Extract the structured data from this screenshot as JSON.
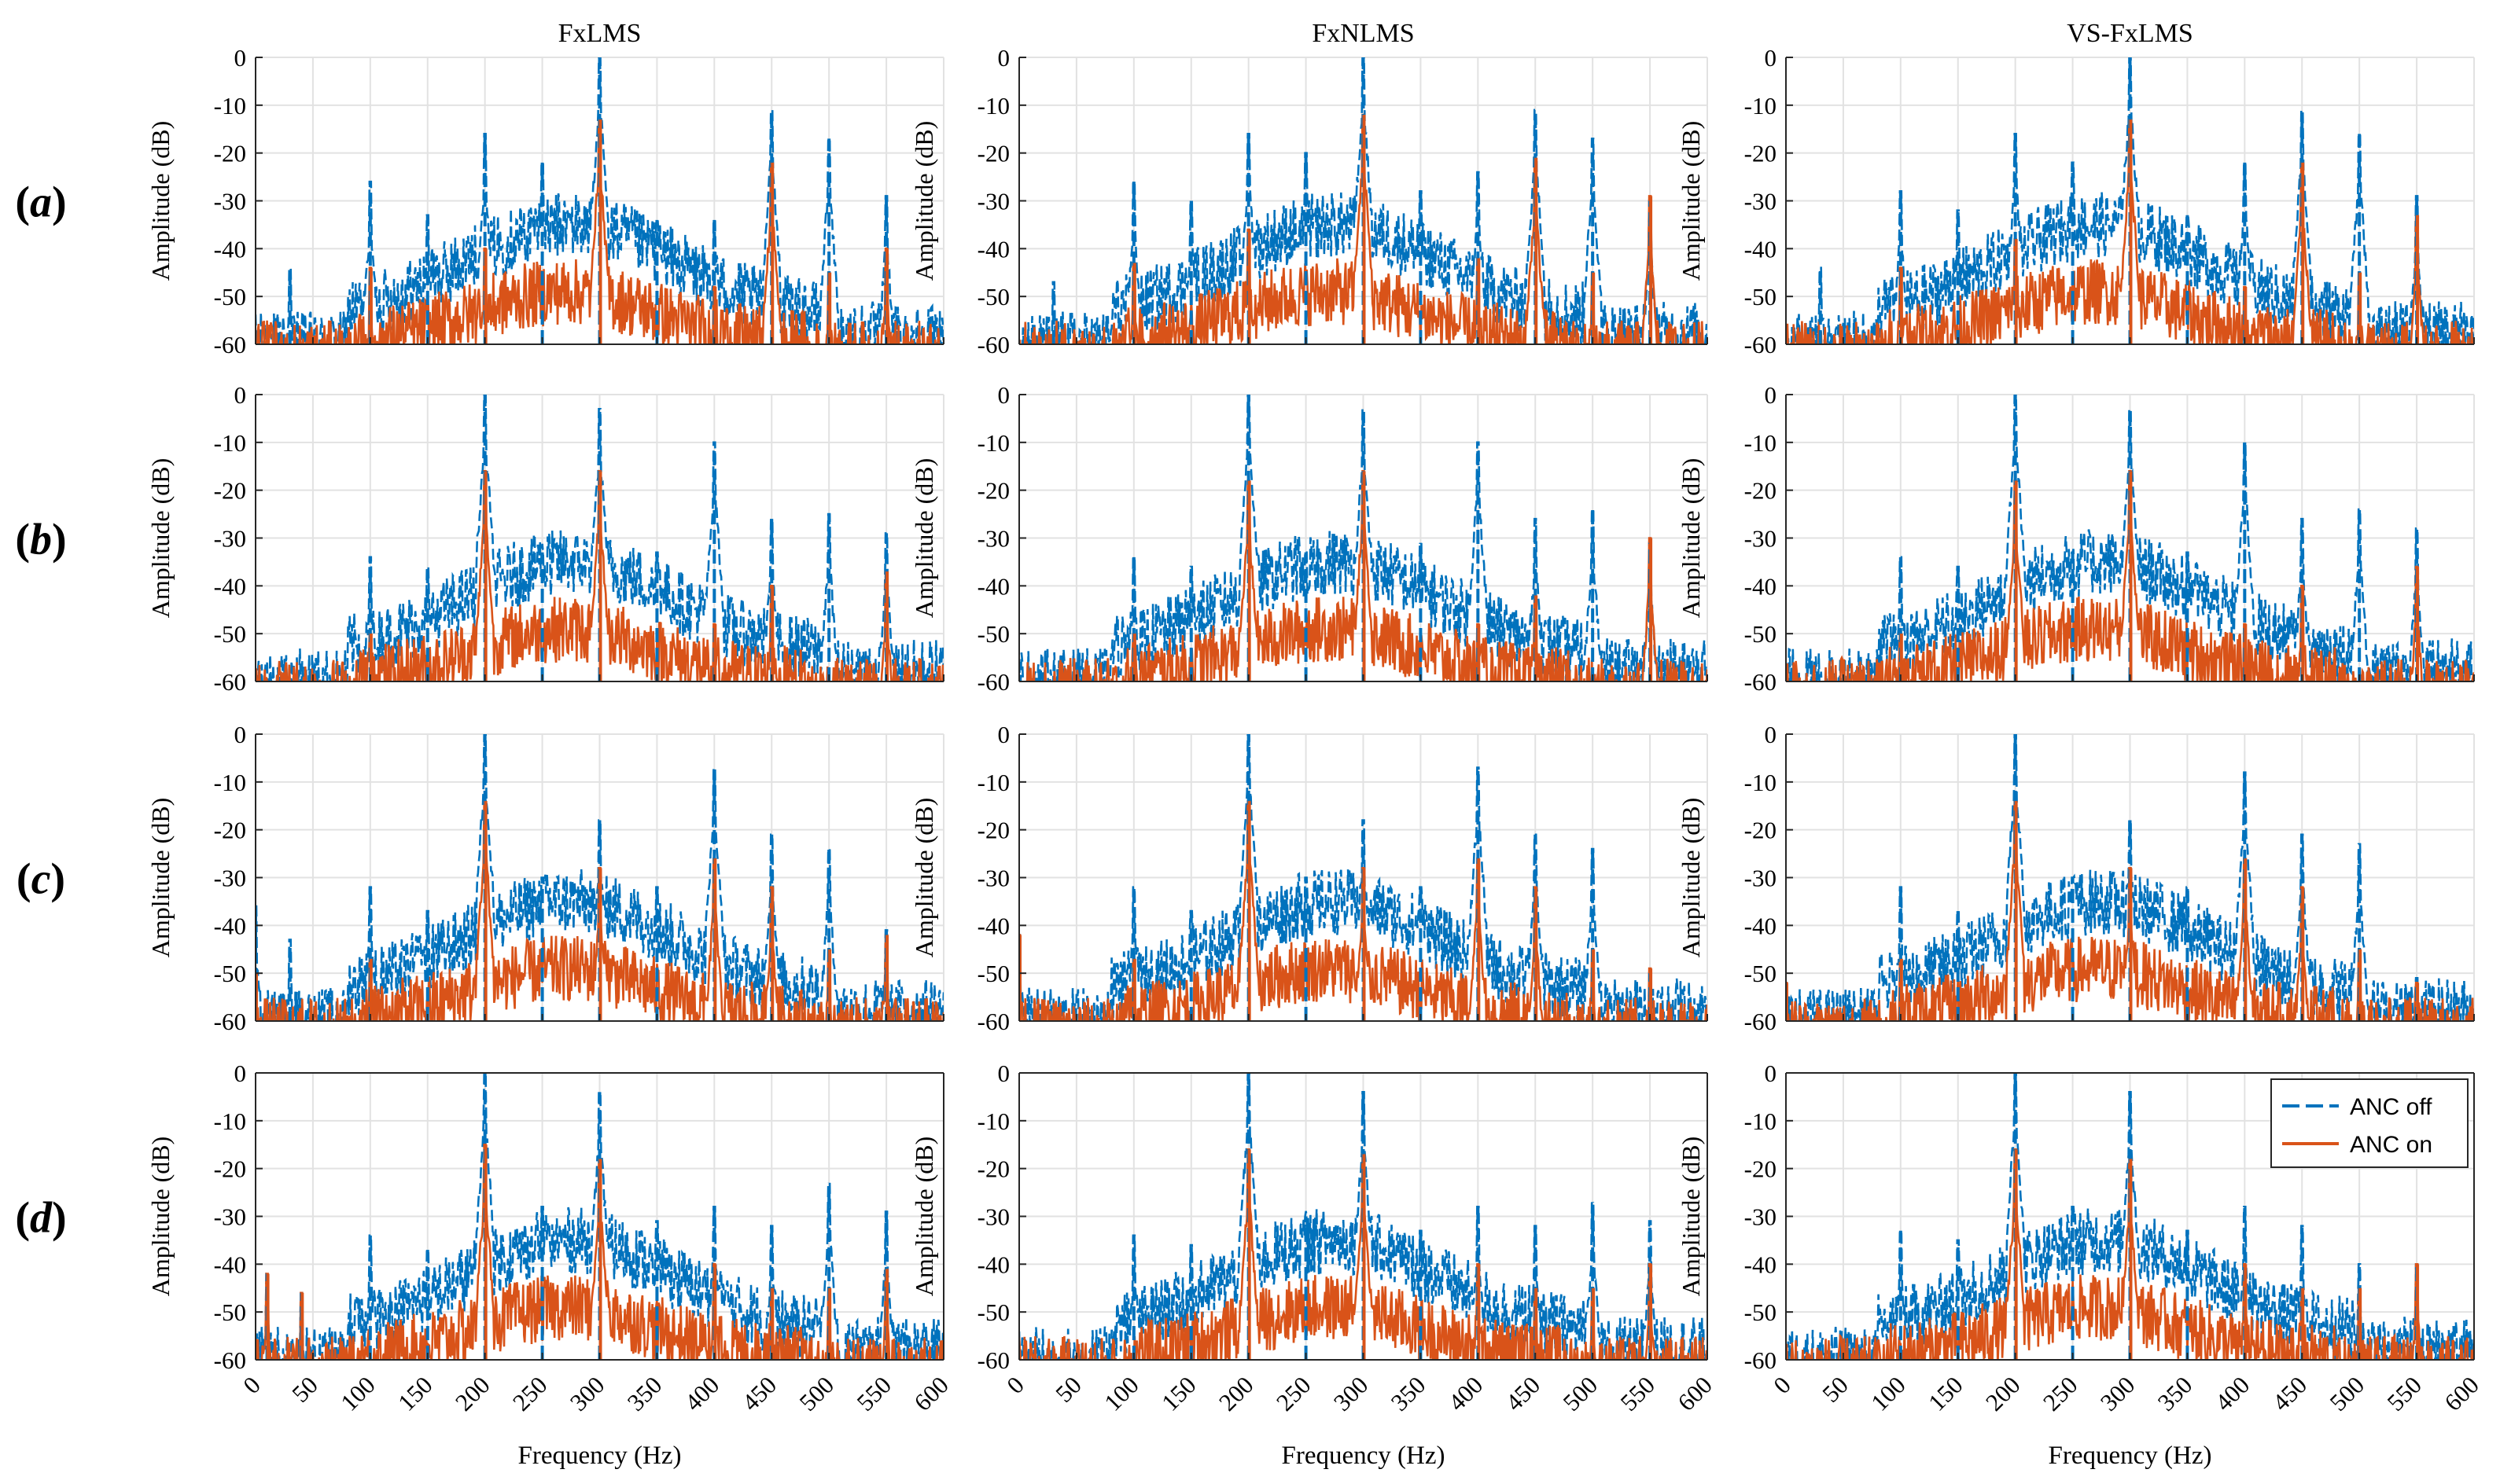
{
  "figure": {
    "columns": [
      "FxLMS",
      "FxNLMS",
      "VS-FxLMS"
    ],
    "rows": [
      "a",
      "b",
      "c",
      "d"
    ],
    "colors": {
      "anc_off": "#0072BD",
      "anc_on": "#D95319",
      "grid": "#e2e2e2",
      "axis": "#262626"
    }
  },
  "chart_data": {
    "type": "line",
    "title": "",
    "xlabel": "Frequency (Hz)",
    "ylabel": "Amplitude (dB)",
    "xlim": [
      0,
      600
    ],
    "ylim": [
      -60,
      0
    ],
    "xticks": [
      0,
      50,
      100,
      150,
      200,
      250,
      300,
      350,
      400,
      450,
      500,
      550,
      600
    ],
    "yticks": [
      0,
      -10,
      -20,
      -30,
      -40,
      -50,
      -60
    ],
    "grid": true,
    "legend": {
      "location": "top-right",
      "entries": [
        "ANC off",
        "ANC on"
      ]
    },
    "series": [
      {
        "name": "ANC off",
        "style": "dashed",
        "description": "broadband noise floor approx. -60 to -30 dB with tonal peaks"
      },
      {
        "name": "ANC on",
        "style": "solid",
        "description": "reduced broadband level approx. -60 to -45 dB with residual tonal peaks"
      }
    ],
    "panels": [
      {
        "row": "a",
        "column": "FxLMS",
        "off_peaks": [
          [
            30,
            -44
          ],
          [
            100,
            -26
          ],
          [
            150,
            -33
          ],
          [
            200,
            -16
          ],
          [
            250,
            -22
          ],
          [
            300,
            0
          ],
          [
            350,
            -34
          ],
          [
            400,
            -34
          ],
          [
            450,
            -11
          ],
          [
            500,
            -17
          ],
          [
            550,
            -29
          ]
        ],
        "on_peaks": [
          [
            100,
            -44
          ],
          [
            200,
            -40
          ],
          [
            300,
            -13
          ],
          [
            400,
            -48
          ],
          [
            450,
            -22
          ],
          [
            500,
            -45
          ],
          [
            550,
            -40
          ]
        ]
      },
      {
        "row": "a",
        "column": "FxNLMS",
        "off_peaks": [
          [
            30,
            -47
          ],
          [
            100,
            -26
          ],
          [
            150,
            -30
          ],
          [
            200,
            -16
          ],
          [
            250,
            -20
          ],
          [
            300,
            0
          ],
          [
            350,
            -28
          ],
          [
            400,
            -24
          ],
          [
            450,
            -11
          ],
          [
            500,
            -17
          ],
          [
            550,
            -30
          ]
        ],
        "on_peaks": [
          [
            100,
            -43
          ],
          [
            200,
            -36
          ],
          [
            300,
            -12
          ],
          [
            400,
            -42
          ],
          [
            450,
            -21
          ],
          [
            500,
            -45
          ],
          [
            550,
            -29
          ]
        ]
      },
      {
        "row": "a",
        "column": "VS-FxLMS",
        "off_peaks": [
          [
            30,
            -44
          ],
          [
            100,
            -28
          ],
          [
            150,
            -32
          ],
          [
            200,
            -16
          ],
          [
            250,
            -22
          ],
          [
            300,
            0
          ],
          [
            350,
            -33
          ],
          [
            400,
            -22
          ],
          [
            450,
            -11
          ],
          [
            500,
            -16
          ],
          [
            550,
            -29
          ]
        ],
        "on_peaks": [
          [
            100,
            -44
          ],
          [
            200,
            -38
          ],
          [
            300,
            -13
          ],
          [
            400,
            -48
          ],
          [
            450,
            -22
          ],
          [
            500,
            -45
          ],
          [
            550,
            -33
          ]
        ]
      },
      {
        "row": "b",
        "column": "FxLMS",
        "off_peaks": [
          [
            100,
            -34
          ],
          [
            150,
            -36
          ],
          [
            200,
            0
          ],
          [
            250,
            -33
          ],
          [
            300,
            -3
          ],
          [
            350,
            -33
          ],
          [
            400,
            -10
          ],
          [
            450,
            -26
          ],
          [
            500,
            -25
          ],
          [
            550,
            -29
          ]
        ],
        "on_peaks": [
          [
            100,
            -50
          ],
          [
            200,
            -16
          ],
          [
            300,
            -16
          ],
          [
            400,
            -48
          ],
          [
            450,
            -40
          ],
          [
            550,
            -37
          ]
        ]
      },
      {
        "row": "b",
        "column": "FxNLMS",
        "off_peaks": [
          [
            100,
            -34
          ],
          [
            150,
            -36
          ],
          [
            200,
            0
          ],
          [
            250,
            -33
          ],
          [
            300,
            -3
          ],
          [
            350,
            -31
          ],
          [
            400,
            -10
          ],
          [
            450,
            -26
          ],
          [
            500,
            -24
          ],
          [
            550,
            -31
          ]
        ],
        "on_peaks": [
          [
            100,
            -50
          ],
          [
            200,
            -18
          ],
          [
            300,
            -16
          ],
          [
            400,
            -48
          ],
          [
            450,
            -42
          ],
          [
            550,
            -30
          ]
        ]
      },
      {
        "row": "b",
        "column": "VS-FxLMS",
        "off_peaks": [
          [
            100,
            -34
          ],
          [
            150,
            -36
          ],
          [
            200,
            0
          ],
          [
            250,
            -33
          ],
          [
            300,
            -3
          ],
          [
            350,
            -33
          ],
          [
            400,
            -10
          ],
          [
            450,
            -26
          ],
          [
            500,
            -24
          ],
          [
            550,
            -28
          ]
        ],
        "on_peaks": [
          [
            100,
            -50
          ],
          [
            200,
            -18
          ],
          [
            300,
            -16
          ],
          [
            400,
            -48
          ],
          [
            450,
            -40
          ],
          [
            550,
            -36
          ]
        ]
      },
      {
        "row": "c",
        "column": "FxLMS",
        "off_peaks": [
          [
            0,
            -36
          ],
          [
            30,
            -43
          ],
          [
            100,
            -32
          ],
          [
            150,
            -37
          ],
          [
            200,
            0
          ],
          [
            250,
            -30
          ],
          [
            300,
            -18
          ],
          [
            350,
            -32
          ],
          [
            400,
            -7
          ],
          [
            450,
            -21
          ],
          [
            500,
            -24
          ],
          [
            550,
            -41
          ]
        ],
        "on_peaks": [
          [
            0,
            -50
          ],
          [
            100,
            -47
          ],
          [
            200,
            -14
          ],
          [
            300,
            -28
          ],
          [
            400,
            -26
          ],
          [
            450,
            -32
          ],
          [
            500,
            -45
          ],
          [
            550,
            -42
          ]
        ]
      },
      {
        "row": "c",
        "column": "FxNLMS",
        "off_peaks": [
          [
            0,
            -42
          ],
          [
            100,
            -32
          ],
          [
            150,
            -37
          ],
          [
            200,
            0
          ],
          [
            250,
            -30
          ],
          [
            300,
            -18
          ],
          [
            350,
            -32
          ],
          [
            400,
            -7
          ],
          [
            450,
            -21
          ],
          [
            500,
            -24
          ],
          [
            550,
            -50
          ]
        ],
        "on_peaks": [
          [
            0,
            -42
          ],
          [
            100,
            -47
          ],
          [
            200,
            -14
          ],
          [
            300,
            -28
          ],
          [
            400,
            -26
          ],
          [
            450,
            -32
          ],
          [
            500,
            -45
          ],
          [
            550,
            -49
          ]
        ]
      },
      {
        "row": "c",
        "column": "VS-FxLMS",
        "off_peaks": [
          [
            0,
            -52
          ],
          [
            100,
            -32
          ],
          [
            150,
            -37
          ],
          [
            200,
            0
          ],
          [
            250,
            -30
          ],
          [
            300,
            -18
          ],
          [
            350,
            -32
          ],
          [
            400,
            -8
          ],
          [
            450,
            -21
          ],
          [
            500,
            -23
          ],
          [
            550,
            -51
          ]
        ],
        "on_peaks": [
          [
            0,
            -52
          ],
          [
            100,
            -47
          ],
          [
            200,
            -14
          ],
          [
            300,
            -28
          ],
          [
            400,
            -26
          ],
          [
            450,
            -32
          ],
          [
            500,
            -45
          ],
          [
            550,
            -52
          ]
        ]
      },
      {
        "row": "d",
        "column": "FxLMS",
        "off_peaks": [
          [
            10,
            -42
          ],
          [
            40,
            -46
          ],
          [
            100,
            -34
          ],
          [
            150,
            -37
          ],
          [
            200,
            0
          ],
          [
            250,
            -28
          ],
          [
            300,
            -4
          ],
          [
            350,
            -31
          ],
          [
            400,
            -28
          ],
          [
            450,
            -32
          ],
          [
            500,
            -23
          ],
          [
            550,
            -29
          ]
        ],
        "on_peaks": [
          [
            10,
            -42
          ],
          [
            40,
            -46
          ],
          [
            200,
            -15
          ],
          [
            300,
            -18
          ],
          [
            400,
            -40
          ],
          [
            450,
            -45
          ],
          [
            500,
            -45
          ],
          [
            550,
            -41
          ]
        ]
      },
      {
        "row": "d",
        "column": "FxNLMS",
        "off_peaks": [
          [
            100,
            -34
          ],
          [
            150,
            -36
          ],
          [
            200,
            0
          ],
          [
            250,
            -30
          ],
          [
            300,
            -4
          ],
          [
            350,
            -33
          ],
          [
            400,
            -28
          ],
          [
            450,
            -32
          ],
          [
            500,
            -27
          ],
          [
            550,
            -31
          ]
        ],
        "on_peaks": [
          [
            200,
            -16
          ],
          [
            300,
            -17
          ],
          [
            400,
            -40
          ],
          [
            450,
            -45
          ],
          [
            500,
            -45
          ],
          [
            550,
            -40
          ]
        ]
      },
      {
        "row": "d",
        "column": "VS-FxLMS",
        "off_peaks": [
          [
            100,
            -33
          ],
          [
            150,
            -35
          ],
          [
            200,
            0
          ],
          [
            250,
            -28
          ],
          [
            300,
            -4
          ],
          [
            350,
            -33
          ],
          [
            400,
            -28
          ],
          [
            450,
            -32
          ],
          [
            500,
            -40
          ],
          [
            550,
            -40
          ]
        ],
        "on_peaks": [
          [
            200,
            -16
          ],
          [
            300,
            -18
          ],
          [
            400,
            -40
          ],
          [
            450,
            -45
          ],
          [
            500,
            -45
          ],
          [
            550,
            -40
          ]
        ]
      }
    ]
  }
}
